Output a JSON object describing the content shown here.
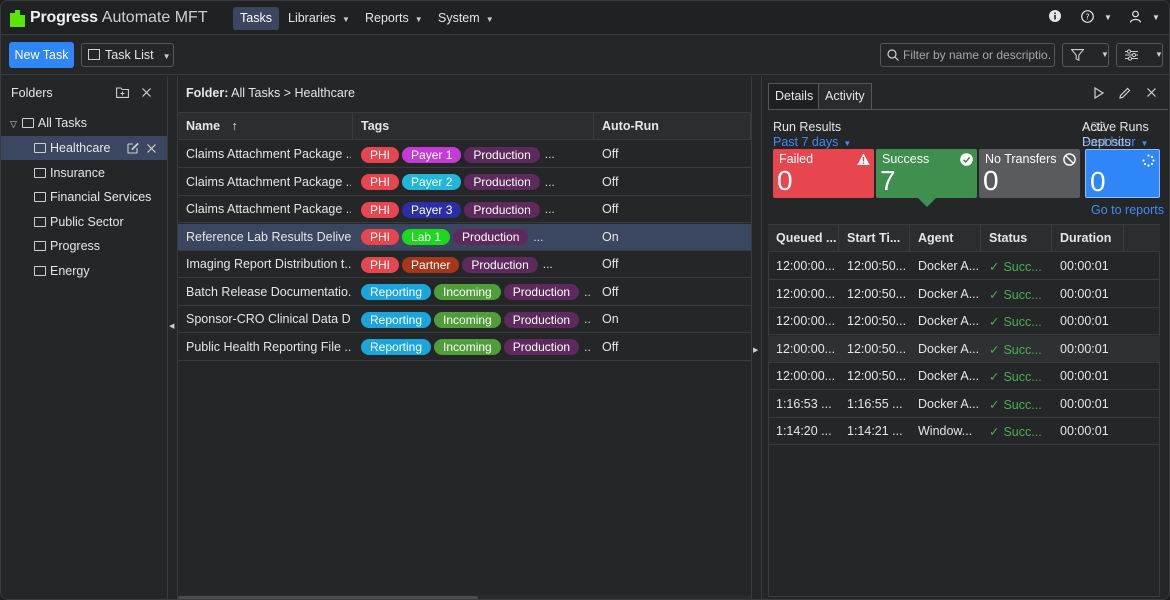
{
  "app": {
    "brand": "Progress",
    "product": "Automate MFT"
  },
  "nav": {
    "items": [
      {
        "label": "Tasks"
      },
      {
        "label": "Libraries"
      },
      {
        "label": "Reports"
      },
      {
        "label": "System"
      }
    ]
  },
  "toolbar": {
    "new_task_label": "New Task",
    "view_label": "Task List",
    "search_placeholder": "Filter by name or descriptio..."
  },
  "folders": {
    "title": "Folders",
    "items": [
      {
        "label": "All Tasks"
      },
      {
        "label": "Healthcare"
      },
      {
        "label": "Insurance"
      },
      {
        "label": "Financial Services"
      },
      {
        "label": "Public Sector"
      },
      {
        "label": "Progress"
      },
      {
        "label": "Energy"
      }
    ]
  },
  "tasklist": {
    "breadcrumb_label": "Folder:",
    "breadcrumb_path": "All Tasks > Healthcare",
    "columns": {
      "name": "Name",
      "sort_arrow": "↑",
      "tags": "Tags",
      "autorun": "Auto-Run"
    },
    "rows": [
      {
        "name": "Claims Attachment Package ...",
        "tags": [
          {
            "label": "PHI",
            "color": "#e8464f"
          },
          {
            "label": "Payer 1",
            "color": "#c43ad6"
          },
          {
            "label": "Production",
            "color": "#5e2a5e"
          }
        ],
        "more": "...",
        "autorun": "Off"
      },
      {
        "name": "Claims Attachment Package ...",
        "tags": [
          {
            "label": "PHI",
            "color": "#e8464f"
          },
          {
            "label": "Payer 2",
            "color": "#22b7d9"
          },
          {
            "label": "Production",
            "color": "#5e2a5e"
          }
        ],
        "more": "...",
        "autorun": "Off"
      },
      {
        "name": "Claims Attachment Package ...",
        "tags": [
          {
            "label": "PHI",
            "color": "#e8464f"
          },
          {
            "label": "Payer 3",
            "color": "#2b2fa3"
          },
          {
            "label": "Production",
            "color": "#5e2a5e"
          }
        ],
        "more": "...",
        "autorun": "Off"
      },
      {
        "name": "Reference Lab Results Delive...",
        "tags": [
          {
            "label": "PHI",
            "color": "#e8464f"
          },
          {
            "label": "Lab 1",
            "color": "#1ed71e"
          },
          {
            "label": "Production",
            "color": "#5e2a5e"
          }
        ],
        "more": "...",
        "autorun": "On"
      },
      {
        "name": "Imaging Report Distribution t...",
        "tags": [
          {
            "label": "PHI",
            "color": "#e8464f"
          },
          {
            "label": "Partner",
            "color": "#a8361a"
          },
          {
            "label": "Production",
            "color": "#5e2a5e"
          }
        ],
        "more": "...",
        "autorun": "Off"
      },
      {
        "name": "Batch Release Documentatio...",
        "tags": [
          {
            "label": "Reporting",
            "color": "#1aa6dc"
          },
          {
            "label": "Incoming",
            "color": "#4f9e3a"
          },
          {
            "label": "Production",
            "color": "#5e2a5e"
          }
        ],
        "more": "...",
        "autorun": "Off"
      },
      {
        "name": "Sponsor-CRO Clinical Data Dr...",
        "tags": [
          {
            "label": "Reporting",
            "color": "#1aa6dc"
          },
          {
            "label": "Incoming",
            "color": "#4f9e3a"
          },
          {
            "label": "Production",
            "color": "#5e2a5e"
          }
        ],
        "more": "...",
        "autorun": "On"
      },
      {
        "name": "Public Health Reporting File ...",
        "tags": [
          {
            "label": "Reporting",
            "color": "#1aa6dc"
          },
          {
            "label": "Incoming",
            "color": "#4f9e3a"
          },
          {
            "label": "Production",
            "color": "#5e2a5e"
          }
        ],
        "more": "...",
        "autorun": "Off"
      }
    ]
  },
  "details": {
    "tabs": [
      {
        "label": "Details"
      },
      {
        "label": "Activity"
      }
    ],
    "run_results": {
      "title": "Run Results",
      "period": "Past 7 days"
    },
    "active_runs": {
      "title": "Active Runs",
      "overlap_title": "AS2",
      "period": "Past hour",
      "overlap_period": "Deposits"
    },
    "cards": [
      {
        "label": "Failed",
        "value": "0",
        "color": "#e8464f"
      },
      {
        "label": "Success",
        "value": "7",
        "color": "#3f8f4f"
      },
      {
        "label": "No Transfers",
        "value": "0",
        "color": "#5a5b5e"
      },
      {
        "label": "",
        "value": "0",
        "color": "#2f86f6"
      }
    ],
    "go_to_reports": "Go to reports",
    "columns": {
      "queued": "Queued ...",
      "start": "Start Ti...",
      "agent": "Agent",
      "status": "Status",
      "duration": "Duration"
    },
    "rows": [
      {
        "queued": "12:00:00...",
        "start": "12:00:50...",
        "agent": "Docker A...",
        "status": "Succ...",
        "duration": "00:00:01"
      },
      {
        "queued": "12:00:00...",
        "start": "12:00:50...",
        "agent": "Docker A...",
        "status": "Succ...",
        "duration": "00:00:01"
      },
      {
        "queued": "12:00:00...",
        "start": "12:00:50...",
        "agent": "Docker A...",
        "status": "Succ...",
        "duration": "00:00:01"
      },
      {
        "queued": "12:00:00...",
        "start": "12:00:50...",
        "agent": "Docker A...",
        "status": "Succ...",
        "duration": "00:00:01"
      },
      {
        "queued": "12:00:00...",
        "start": "12:00:50...",
        "agent": "Docker A...",
        "status": "Succ...",
        "duration": "00:00:01"
      },
      {
        "queued": "1:16:53 ...",
        "start": "1:16:55 ...",
        "agent": "Docker A...",
        "status": "Succ...",
        "duration": "00:00:01"
      },
      {
        "queued": "1:14:20 ...",
        "start": "1:14:21 ...",
        "agent": "Window...",
        "status": "Succ...",
        "duration": "00:00:01"
      }
    ]
  }
}
